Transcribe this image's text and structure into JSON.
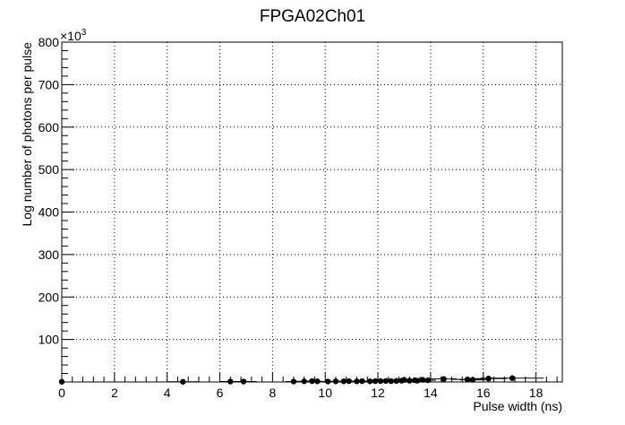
{
  "chart_data": {
    "type": "scatter",
    "title": "FPGA02Ch01",
    "xlabel": "Pulse width (ns)",
    "ylabel": "Log number of photons per pulse",
    "y_multiplier_base": "×10",
    "y_multiplier_exponent": "3",
    "xlim": [
      0,
      19.0
    ],
    "ylim": [
      0,
      800
    ],
    "x_ticks": [
      0,
      2,
      4,
      6,
      8,
      10,
      12,
      14,
      16,
      18
    ],
    "x_tick_labels": [
      "0",
      "2",
      "4",
      "6",
      "8",
      "10",
      "12",
      "14",
      "16",
      "18"
    ],
    "y_ticks": [
      100,
      200,
      300,
      400,
      500,
      600,
      700,
      800
    ],
    "y_tick_labels": [
      "100",
      "200",
      "300",
      "400",
      "500",
      "600",
      "700",
      "800"
    ],
    "grid": true,
    "marker": "filled-circle",
    "error_bars": "horizontal",
    "series": [
      {
        "points": [
          {
            "x": 0.0,
            "y": 0.5,
            "xerr": 0.1
          },
          {
            "x": 4.6,
            "y": 0.5,
            "xerr": 0.6
          },
          {
            "x": 6.4,
            "y": 1.0,
            "xerr": 0.4
          },
          {
            "x": 6.9,
            "y": 1.0,
            "xerr": 0.5
          },
          {
            "x": 8.8,
            "y": 1.0,
            "xerr": 0.3
          },
          {
            "x": 9.2,
            "y": 1.5,
            "xerr": 0.4
          },
          {
            "x": 9.5,
            "y": 2.0,
            "xerr": 0.3
          },
          {
            "x": 9.7,
            "y": 1.5,
            "xerr": 0.2
          },
          {
            "x": 10.1,
            "y": 1.0,
            "xerr": 0.3
          },
          {
            "x": 10.4,
            "y": 1.5,
            "xerr": 0.3
          },
          {
            "x": 10.7,
            "y": 1.5,
            "xerr": 0.4
          },
          {
            "x": 10.9,
            "y": 2.0,
            "xerr": 0.3
          },
          {
            "x": 11.2,
            "y": 1.5,
            "xerr": 0.3
          },
          {
            "x": 11.4,
            "y": 2.0,
            "xerr": 0.3
          },
          {
            "x": 11.7,
            "y": 1.5,
            "xerr": 0.3
          },
          {
            "x": 11.9,
            "y": 2.0,
            "xerr": 0.3
          },
          {
            "x": 12.1,
            "y": 2.0,
            "xerr": 0.3
          },
          {
            "x": 12.3,
            "y": 2.5,
            "xerr": 0.3
          },
          {
            "x": 12.5,
            "y": 2.0,
            "xerr": 0.3
          },
          {
            "x": 12.7,
            "y": 2.5,
            "xerr": 0.3
          },
          {
            "x": 12.9,
            "y": 3.0,
            "xerr": 0.3
          },
          {
            "x": 13.0,
            "y": 5.0,
            "xerr": 0.3
          },
          {
            "x": 13.2,
            "y": 3.0,
            "xerr": 0.3
          },
          {
            "x": 13.4,
            "y": 4.0,
            "xerr": 0.3
          },
          {
            "x": 13.5,
            "y": 3.0,
            "xerr": 0.3
          },
          {
            "x": 13.7,
            "y": 5.0,
            "xerr": 0.3
          },
          {
            "x": 13.9,
            "y": 4.0,
            "xerr": 0.3
          },
          {
            "x": 14.5,
            "y": 7.0,
            "xerr": 0.5
          },
          {
            "x": 15.4,
            "y": 6.0,
            "xerr": 0.6
          },
          {
            "x": 15.6,
            "y": 5.0,
            "xerr": 0.5
          },
          {
            "x": 16.2,
            "y": 8.0,
            "xerr": 0.7
          },
          {
            "x": 17.1,
            "y": 9.0,
            "xerr": 1.2
          }
        ]
      }
    ]
  }
}
